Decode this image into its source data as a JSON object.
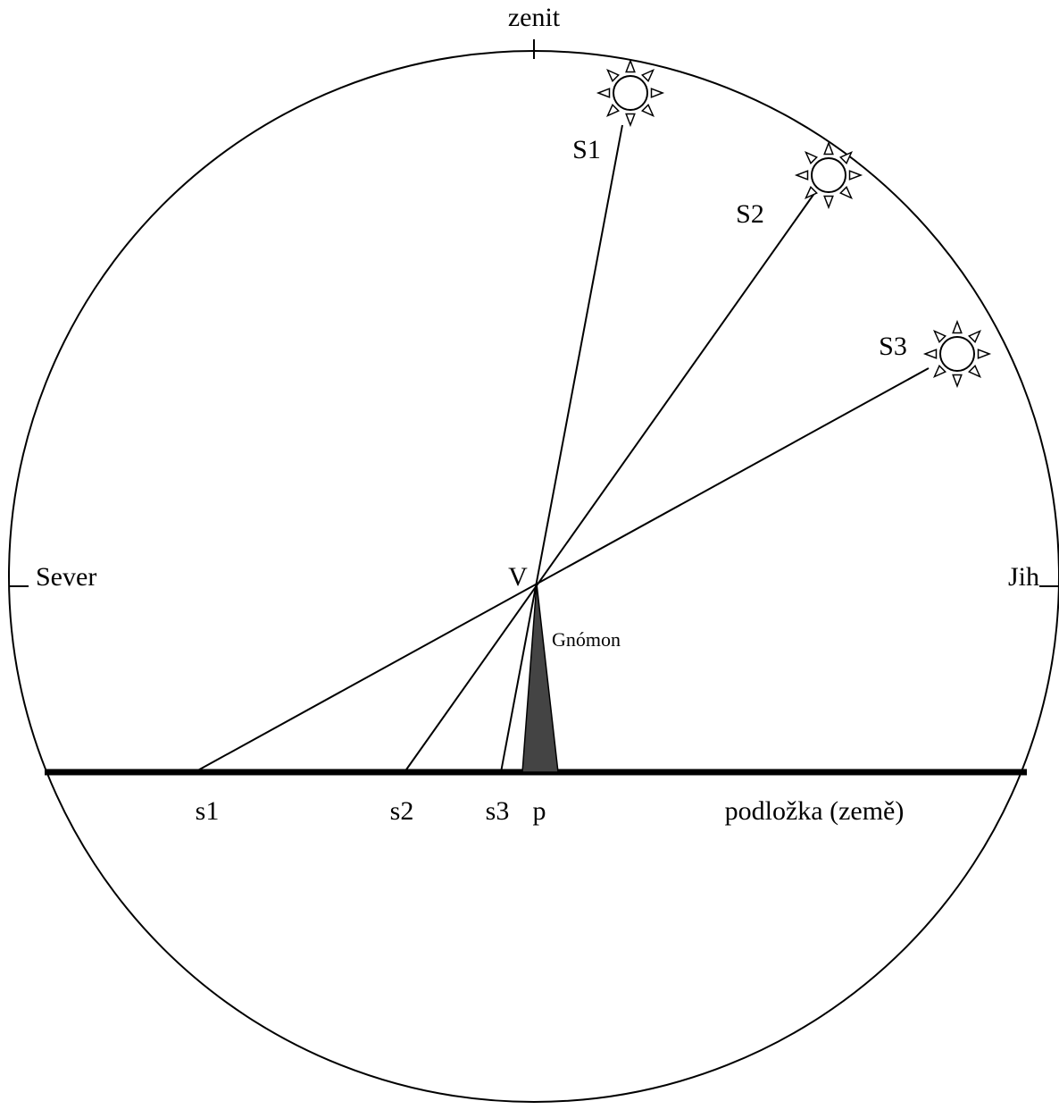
{
  "labels": {
    "zenith": "zenit",
    "north": "Sever",
    "south": "Jih",
    "vertex": "V",
    "gnomon": "Gnómon",
    "suns": [
      "S1",
      "S2",
      "S3"
    ],
    "shadows": [
      "s1",
      "s2",
      "s3"
    ],
    "foot": "p",
    "ground": "podložka (země)"
  }
}
